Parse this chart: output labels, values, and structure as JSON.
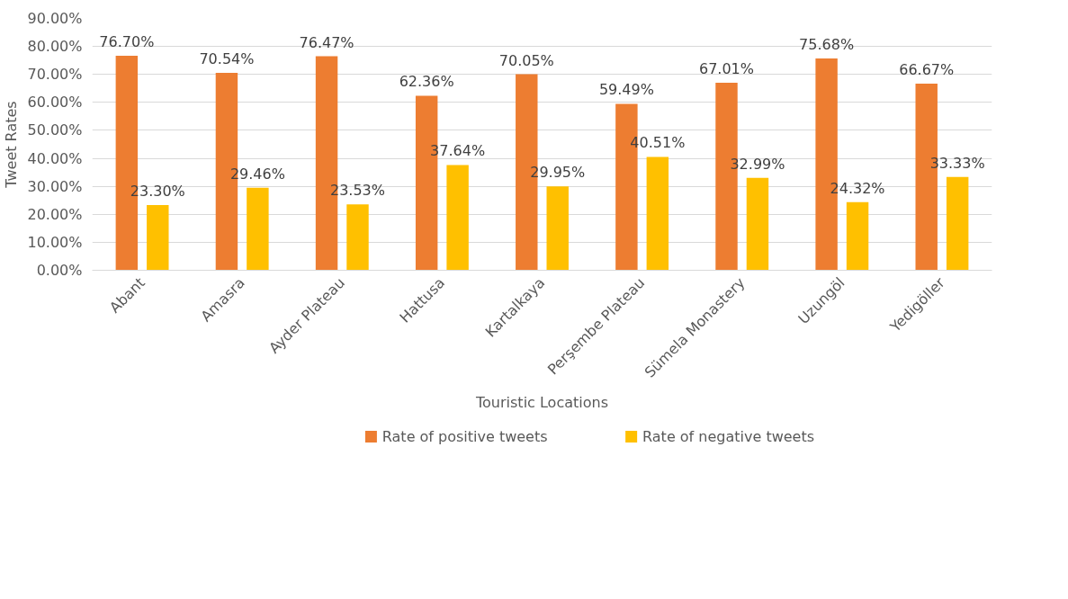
{
  "chart_data": {
    "type": "bar",
    "xlabel": "Touristic Locations",
    "ylabel": "Tweet Rates",
    "categories": [
      "Abant",
      "Amasra",
      "Ayder Plateau",
      "Hattusa",
      "Kartalkaya",
      "Perşembe Plateau",
      "Sümela Monastery",
      "Uzungöl",
      "Yedigöller"
    ],
    "series": [
      {
        "name": "Rate of positive tweets",
        "color": "#ed7d31",
        "values": [
          76.7,
          70.54,
          76.47,
          62.36,
          70.05,
          59.49,
          67.01,
          75.68,
          66.67
        ],
        "value_labels": [
          "76.70%",
          "70.54%",
          "76.47%",
          "62.36%",
          "70.05%",
          "59.49%",
          "67.01%",
          "75.68%",
          "66.67%"
        ]
      },
      {
        "name": "Rate of negative tweets",
        "color": "#ffc000",
        "values": [
          23.3,
          29.46,
          23.53,
          37.64,
          29.95,
          40.51,
          32.99,
          24.32,
          33.33
        ],
        "value_labels": [
          "23.30%",
          "29.46%",
          "23.53%",
          "37.64%",
          "29.95%",
          "40.51%",
          "32.99%",
          "24.32%",
          "33.33%"
        ]
      }
    ],
    "ylim": [
      0,
      90
    ],
    "yticks": [
      {
        "value": 0,
        "label": "0.00%"
      },
      {
        "value": 10,
        "label": "10.00%"
      },
      {
        "value": 20,
        "label": "20.00%"
      },
      {
        "value": 30,
        "label": "30.00%"
      },
      {
        "value": 40,
        "label": "40.00%"
      },
      {
        "value": 50,
        "label": "50.00%"
      },
      {
        "value": 60,
        "label": "60.00%"
      },
      {
        "value": 70,
        "label": "70.00%"
      },
      {
        "value": 80,
        "label": "80.00%"
      },
      {
        "value": 90,
        "label": "90.00%"
      }
    ],
    "grid": "y",
    "legend": "bottom"
  }
}
